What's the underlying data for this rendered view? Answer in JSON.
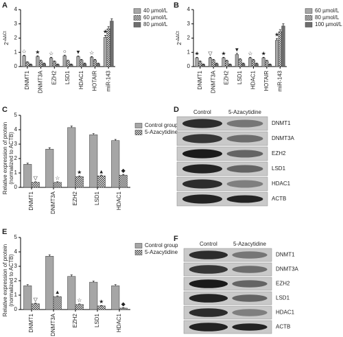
{
  "chart_data": [
    {
      "type": "bar",
      "panel": "A",
      "ylabel": {
        "base": "2",
        "sup": "-ΔΔCt"
      },
      "categories": [
        "DNMT1",
        "DNMT3A",
        "EZH2",
        "LSD1",
        "HDAC1",
        "HOTAIR",
        "miR-143"
      ],
      "series": [
        {
          "name": "40 µmol/L",
          "color": "#a6a6a6",
          "pattern": "solid",
          "values": [
            0.75,
            0.7,
            0.6,
            0.75,
            0.7,
            0.65,
            2.05
          ],
          "errors": [
            0.05,
            0.06,
            0.05,
            0.06,
            0.05,
            0.05,
            0.15
          ],
          "symbols": [
            "☆",
            "★",
            "☆",
            "○",
            "▼",
            "☆",
            "★"
          ]
        },
        {
          "name": "60 µmol/L",
          "color": "#ffffff",
          "pattern": "checker",
          "values": [
            0.3,
            0.4,
            0.35,
            0.4,
            0.45,
            0.45,
            2.65
          ],
          "errors": [
            0.04,
            0.05,
            0.04,
            0.05,
            0.05,
            0.05,
            0.15
          ]
        },
        {
          "name": "80 µmol/L",
          "color": "#6e6e6e",
          "pattern": "solid",
          "values": [
            0.15,
            0.2,
            0.15,
            0.15,
            0.2,
            0.2,
            3.2
          ],
          "errors": [
            0.03,
            0.04,
            0.03,
            0.03,
            0.04,
            0.04,
            0.15
          ]
        }
      ],
      "ylim": [
        0,
        4
      ],
      "yticks": [
        0,
        1,
        2,
        3,
        4
      ]
    },
    {
      "type": "bar",
      "panel": "B",
      "ylabel": {
        "base": "2",
        "sup": "-ΔΔCt"
      },
      "categories": [
        "DNMT1",
        "DNMT3A",
        "EZH2",
        "LSD1",
        "HDAC1",
        "HOTAIR",
        "miR-143"
      ],
      "series": [
        {
          "name": "60 µmol/L",
          "color": "#a6a6a6",
          "pattern": "solid",
          "values": [
            0.6,
            0.6,
            0.6,
            0.85,
            0.6,
            0.6,
            1.85
          ],
          "errors": [
            0.05,
            0.06,
            0.05,
            0.08,
            0.05,
            0.05,
            0.12
          ],
          "symbols": [
            "★",
            "▽",
            "★",
            "▼",
            "☆",
            "★",
            "★"
          ]
        },
        {
          "name": "80 µmol/L",
          "color": "#ffffff",
          "pattern": "checker",
          "values": [
            0.35,
            0.45,
            0.4,
            0.5,
            0.45,
            0.4,
            2.45
          ],
          "errors": [
            0.04,
            0.05,
            0.04,
            0.05,
            0.05,
            0.04,
            0.15
          ]
        },
        {
          "name": "100 µmol/L",
          "color": "#6e6e6e",
          "pattern": "solid",
          "values": [
            0.15,
            0.2,
            0.15,
            0.2,
            0.2,
            0.15,
            2.85
          ],
          "errors": [
            0.03,
            0.04,
            0.03,
            0.04,
            0.04,
            0.03,
            0.15
          ]
        }
      ],
      "ylim": [
        0,
        4
      ],
      "yticks": [
        0,
        1,
        2,
        3,
        4
      ]
    },
    {
      "type": "bar",
      "panel": "C",
      "ylabel": [
        "Relative expression of protein",
        "(normalized to ACTB)"
      ],
      "categories": [
        "DNMT1",
        "DNMT3A",
        "EZH2",
        "LSD1",
        "HDAC1"
      ],
      "series": [
        {
          "name": "Control group",
          "color": "#a6a6a6",
          "pattern": "solid",
          "values": [
            1.6,
            2.65,
            4.15,
            3.65,
            3.25
          ],
          "errors": [
            0.08,
            0.1,
            0.1,
            0.08,
            0.08
          ]
        },
        {
          "name": "5-Azacytidine",
          "color": "#ffffff",
          "pattern": "checker",
          "values": [
            0.35,
            0.35,
            0.75,
            0.8,
            0.85
          ],
          "errors": [
            0.04,
            0.04,
            0.05,
            0.05,
            0.05
          ],
          "symbols": [
            "▽",
            "☆",
            "★",
            "▲",
            "◆"
          ]
        }
      ],
      "ylim": [
        0,
        5
      ],
      "yticks": [
        0,
        1,
        2,
        3,
        4,
        5
      ]
    },
    {
      "type": "bar",
      "panel": "E",
      "ylabel": [
        "Relative expression of protein",
        "(normalized to ACTB)"
      ],
      "categories": [
        "DNMT1",
        "DNMT3A",
        "EZH2",
        "LSD1",
        "HDAC1"
      ],
      "series": [
        {
          "name": "Control group",
          "color": "#a6a6a6",
          "pattern": "solid",
          "values": [
            1.65,
            3.7,
            2.3,
            1.9,
            1.65
          ],
          "errors": [
            0.08,
            0.1,
            0.1,
            0.08,
            0.08
          ]
        },
        {
          "name": "5-Azacytidine",
          "color": "#ffffff",
          "pattern": "checker",
          "values": [
            0.4,
            0.9,
            0.35,
            0.25,
            0.1
          ],
          "errors": [
            0.04,
            0.05,
            0.04,
            0.03,
            0.03
          ],
          "symbols": [
            "▽",
            "▲",
            "☆",
            "★",
            "◆"
          ]
        }
      ],
      "ylim": [
        0,
        5
      ],
      "yticks": [
        0,
        1,
        2,
        3,
        4,
        5
      ]
    }
  ],
  "blots": [
    {
      "panel": "D",
      "columns": [
        "Control",
        "5-Azacytidine"
      ],
      "rows": [
        "DNMT1",
        "DNMT3A",
        "EZH2",
        "LSD1",
        "HDAC1",
        "ACTB"
      ]
    },
    {
      "panel": "F",
      "columns": [
        "Control",
        "5-Azacytidine"
      ],
      "rows": [
        "DNMT1",
        "DNMT3A",
        "EZH2",
        "LSD1",
        "HDAC1",
        "ACTB"
      ]
    }
  ]
}
